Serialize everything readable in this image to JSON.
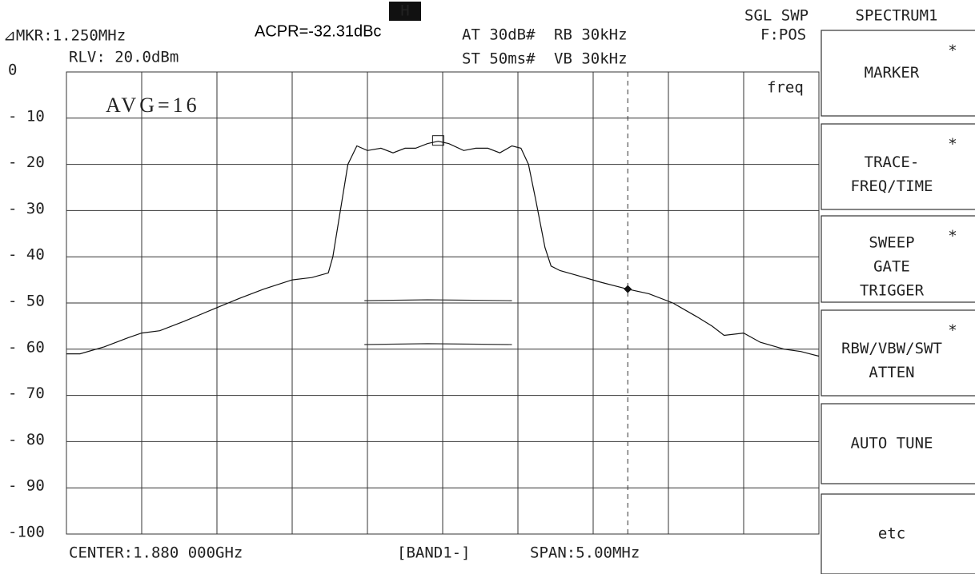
{
  "chart_data": {
    "type": "line",
    "annotations": {
      "marker": "⊿MKR:1.250MHz",
      "acpr": "ACPR=-32.31dBc",
      "hold": "H",
      "atten": "AT 30dB#",
      "rbw": "RB 30kHz",
      "sweep_time": "ST 50ms#",
      "vbw": "VB 30kHz",
      "sweep_mode": "SGL SWP",
      "detector": "F:POS",
      "ref_level": "RLV:  20.0dBm",
      "domain": "freq",
      "average": "AVG=16",
      "center": "CENTER:1.880 000GHz",
      "band": "[BAND1-]",
      "span": "SPAN:5.00MHz"
    },
    "xlim": [
      1877.5,
      1882.5
    ],
    "xticks": [
      1877.5,
      1878,
      1878.5,
      1879,
      1879.5,
      1880,
      1880.5,
      1881,
      1881.5,
      1882,
      1882.5
    ],
    "ylim": [
      -100,
      0
    ],
    "yticks": [
      {
        "value": 0,
        "label": "0"
      },
      {
        "value": -10,
        "label": "- 10"
      },
      {
        "value": -20,
        "label": "- 20"
      },
      {
        "value": -30,
        "label": "- 30"
      },
      {
        "value": -40,
        "label": "- 40"
      },
      {
        "value": -50,
        "label": "- 50"
      },
      {
        "value": -60,
        "label": "- 60"
      },
      {
        "value": -70,
        "label": "- 70"
      },
      {
        "value": -80,
        "label": "- 80"
      },
      {
        "value": -90,
        "label": "- 90"
      },
      {
        "value": -100,
        "label": "-100"
      }
    ],
    "grid": true,
    "series": [
      {
        "color": "#111",
        "x": [
          1877.5,
          1877.59,
          1877.75,
          1877.91,
          1878.0,
          1878.12,
          1878.28,
          1878.5,
          1878.65,
          1878.81,
          1879.0,
          1879.13,
          1879.24,
          1879.27,
          1879.32,
          1879.37,
          1879.43,
          1879.5,
          1879.59,
          1879.67,
          1879.75,
          1879.82,
          1879.9,
          1879.97,
          1880.04,
          1880.14,
          1880.22,
          1880.3,
          1880.38,
          1880.46,
          1880.52,
          1880.57,
          1880.62,
          1880.68,
          1880.72,
          1880.78,
          1880.89,
          1881.05,
          1881.23,
          1881.37,
          1881.53,
          1881.69,
          1881.79,
          1881.87,
          1882.0,
          1882.11,
          1882.27,
          1882.38,
          1882.5
        ],
        "values": [
          -61,
          -61,
          -59.5,
          -57.5,
          -56.5,
          -56,
          -54,
          -51,
          -49,
          -47,
          -45,
          -44.5,
          -43.5,
          -40,
          -30,
          -20,
          -16,
          -17,
          -16.5,
          -17.5,
          -16.5,
          -16.5,
          -15.5,
          -15,
          -15.5,
          -17,
          -16.5,
          -16.5,
          -17.5,
          -16,
          -16.5,
          -20,
          -28,
          -38,
          -42,
          -43,
          -44,
          -45.5,
          -47,
          -48,
          -50,
          -53,
          -55,
          -57,
          -56.5,
          -58.5,
          -60,
          -60.5,
          -61.5
        ]
      },
      {
        "color": "#333",
        "x": [
          1879.48,
          1879.9,
          1880.46
        ],
        "values": [
          -49.5,
          -49.3,
          -49.5
        ]
      },
      {
        "color": "#333",
        "x": [
          1879.48,
          1879.9,
          1880.46
        ],
        "values": [
          -59,
          -58.8,
          -59
        ]
      }
    ],
    "markers": [
      {
        "x": 1879.97,
        "y": -15,
        "shape": "square"
      },
      {
        "x": 1881.23,
        "y": -47,
        "shape": "diamond"
      }
    ]
  },
  "softkeys": [
    {
      "lines": [
        "MARKER"
      ],
      "star": "*"
    },
    {
      "lines": [
        "TRACE-",
        "FREQ/TIME"
      ],
      "star": "*"
    },
    {
      "lines": [
        "SWEEP",
        "GATE",
        "TRIGGER"
      ],
      "star": "*"
    },
    {
      "lines": [
        "RBW/VBW/SWT",
        "ATTEN"
      ],
      "star": "*"
    },
    {
      "lines": [
        "AUTO TUNE"
      ]
    },
    {
      "lines": [
        "etc"
      ]
    }
  ],
  "softkey_title": "SPECTRUM1"
}
